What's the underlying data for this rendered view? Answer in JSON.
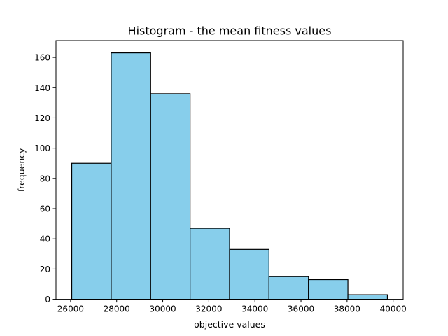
{
  "chart_data": {
    "type": "bar",
    "title": "Histogram - the mean fitness values",
    "xlabel": "objective values",
    "ylabel": "frequency",
    "bins": [
      {
        "start": 26050,
        "end": 27762,
        "count": 90
      },
      {
        "start": 27762,
        "end": 29475,
        "count": 163
      },
      {
        "start": 29475,
        "end": 31187,
        "count": 136
      },
      {
        "start": 31187,
        "end": 32900,
        "count": 47
      },
      {
        "start": 32900,
        "end": 34612,
        "count": 33
      },
      {
        "start": 34612,
        "end": 36325,
        "count": 15
      },
      {
        "start": 36325,
        "end": 38037,
        "count": 13
      },
      {
        "start": 38037,
        "end": 39750,
        "count": 3
      }
    ],
    "xlim": [
      25365,
      40435
    ],
    "ylim": [
      0,
      171.15
    ],
    "xticks": [
      26000,
      28000,
      30000,
      32000,
      34000,
      36000,
      38000,
      40000
    ],
    "yticks": [
      0,
      20,
      40,
      60,
      80,
      100,
      120,
      140,
      160
    ],
    "bar_color": "#87ceeb",
    "edge_color": "#000000",
    "grid": false,
    "legend": "none"
  }
}
